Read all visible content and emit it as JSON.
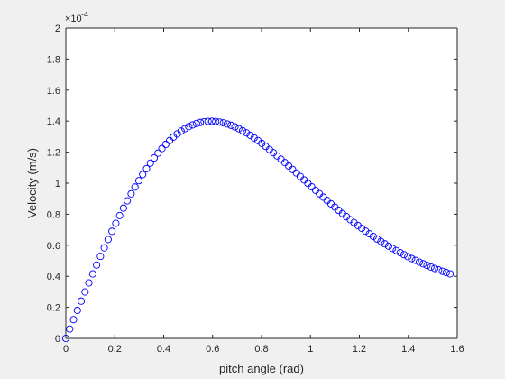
{
  "chart_data": {
    "type": "scatter",
    "title": "",
    "xlabel": "pitch angle (rad)",
    "ylabel": "Velocity (m/s)",
    "y_exponent_label": "×10",
    "y_exponent": "-4",
    "xlim": [
      0,
      1.6
    ],
    "ylim": [
      0,
      2
    ],
    "y_scale_factor": 0.0001,
    "xticks": [
      0,
      0.2,
      0.4,
      0.6,
      0.8,
      1,
      1.2,
      1.4,
      1.6
    ],
    "xtick_labels": [
      "0",
      "0.2",
      "0.4",
      "0.6",
      "0.8",
      "1",
      "1.2",
      "1.4",
      "1.6"
    ],
    "yticks": [
      0,
      0.2,
      0.4,
      0.6,
      0.8,
      1,
      1.2,
      1.4,
      1.6,
      1.8,
      2
    ],
    "ytick_labels": [
      "0",
      "0.2",
      "0.4",
      "0.6",
      "0.8",
      "1",
      "1.2",
      "1.4",
      "1.6",
      "1.8",
      "2"
    ],
    "grid": false,
    "marker": "open-circle",
    "marker_color": "#0000ff",
    "series": [
      {
        "x": [
          0,
          0.0157,
          0.0314,
          0.0471,
          0.0628,
          0.0785,
          0.0942,
          0.11,
          0.1257,
          0.1414,
          0.1571,
          0.1728,
          0.1885,
          0.2042,
          0.2199,
          0.2356,
          0.2513,
          0.267,
          0.2827,
          0.2985,
          0.3142,
          0.3299,
          0.3456,
          0.3613,
          0.377,
          0.3927,
          0.4084,
          0.4241,
          0.4398,
          0.4555,
          0.4712,
          0.4869,
          0.5027,
          0.5184,
          0.5341,
          0.5498,
          0.5655,
          0.5812,
          0.5969,
          0.6126,
          0.6283,
          0.644,
          0.6597,
          0.6754,
          0.6912,
          0.7069,
          0.7226,
          0.7383,
          0.754,
          0.7697,
          0.7854,
          0.8011,
          0.8168,
          0.8325,
          0.8482,
          0.8639,
          0.8796,
          0.8954,
          0.9111,
          0.9268,
          0.9425,
          0.9582,
          0.9739,
          0.9896,
          1.0053,
          1.021,
          1.0367,
          1.0524,
          1.0681,
          1.0838,
          1.0996,
          1.1153,
          1.131,
          1.1467,
          1.1624,
          1.1781,
          1.1938,
          1.2095,
          1.2252,
          1.2409,
          1.2566,
          1.2723,
          1.2881,
          1.3038,
          1.3195,
          1.3352,
          1.3509,
          1.3666,
          1.3823,
          1.398,
          1.4137,
          1.4294,
          1.4451,
          1.4608,
          1.4765,
          1.4923,
          1.508,
          1.5237,
          1.5394,
          1.5551,
          1.5708
        ],
        "y": [
          0.0,
          0.0603,
          0.1205,
          0.1804,
          0.24,
          0.299,
          0.3575,
          0.4153,
          0.4723,
          0.5283,
          0.5833,
          0.6372,
          0.6899,
          0.7412,
          0.7911,
          0.8395,
          0.8863,
          0.9314,
          0.9747,
          1.0162,
          1.0558,
          1.0935,
          1.1291,
          1.1626,
          1.194,
          1.2232,
          1.2502,
          1.2749,
          1.2973,
          1.3175,
          1.3354,
          1.351,
          1.3644,
          1.3755,
          1.3844,
          1.3911,
          1.3957,
          1.3982,
          1.3987,
          1.3971,
          1.3937,
          1.3885,
          1.3815,
          1.373,
          1.3628,
          1.3512,
          1.3382,
          1.324,
          1.3086,
          1.2921,
          1.2746,
          1.2563,
          1.2372,
          1.2173,
          1.1969,
          1.1759,
          1.1545,
          1.1327,
          1.1107,
          1.0885,
          1.0661,
          1.0436,
          1.0211,
          0.9987,
          0.9763,
          0.954,
          0.9319,
          0.91,
          0.8883,
          0.8669,
          0.8458,
          0.8251,
          0.8047,
          0.7847,
          0.7651,
          0.7459,
          0.7272,
          0.7089,
          0.6911,
          0.6737,
          0.6569,
          0.6405,
          0.6246,
          0.6092,
          0.5942,
          0.5797,
          0.5657,
          0.5522,
          0.5391,
          0.5265,
          0.5143,
          0.5026,
          0.4913,
          0.4805,
          0.4701,
          0.46,
          0.4504,
          0.4412,
          0.4323,
          0.4238,
          0.4157
        ]
      }
    ]
  }
}
